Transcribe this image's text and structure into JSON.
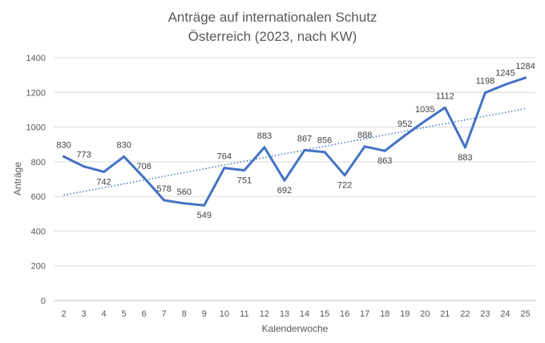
{
  "chart_data": {
    "type": "line",
    "title": "Anträge auf internationalen Schutz",
    "subtitle": "Österreich (2023, nach KW)",
    "xlabel": "Kalenderwoche",
    "ylabel": "Anträge",
    "categories": [
      "2",
      "3",
      "4",
      "5",
      "6",
      "7",
      "8",
      "9",
      "10",
      "11",
      "12",
      "13",
      "14",
      "15",
      "16",
      "17",
      "18",
      "19",
      "20",
      "21",
      "22",
      "23",
      "24",
      "25"
    ],
    "series": [
      {
        "values": [
          830,
          773,
          742,
          830,
          708,
          578,
          560,
          549,
          764,
          751,
          883,
          692,
          867,
          856,
          722,
          888,
          863,
          952,
          1035,
          1112,
          883,
          1198,
          1245,
          1284
        ],
        "color": "#4472C4",
        "data_labels": true
      }
    ],
    "trendline": {
      "type": "linear",
      "style": "dotted",
      "color": "#4472C4"
    },
    "ylim": [
      0,
      1400
    ],
    "yticks": [
      0,
      200,
      400,
      600,
      800,
      1000,
      1200,
      1400
    ],
    "grid": true,
    "legend": false
  }
}
